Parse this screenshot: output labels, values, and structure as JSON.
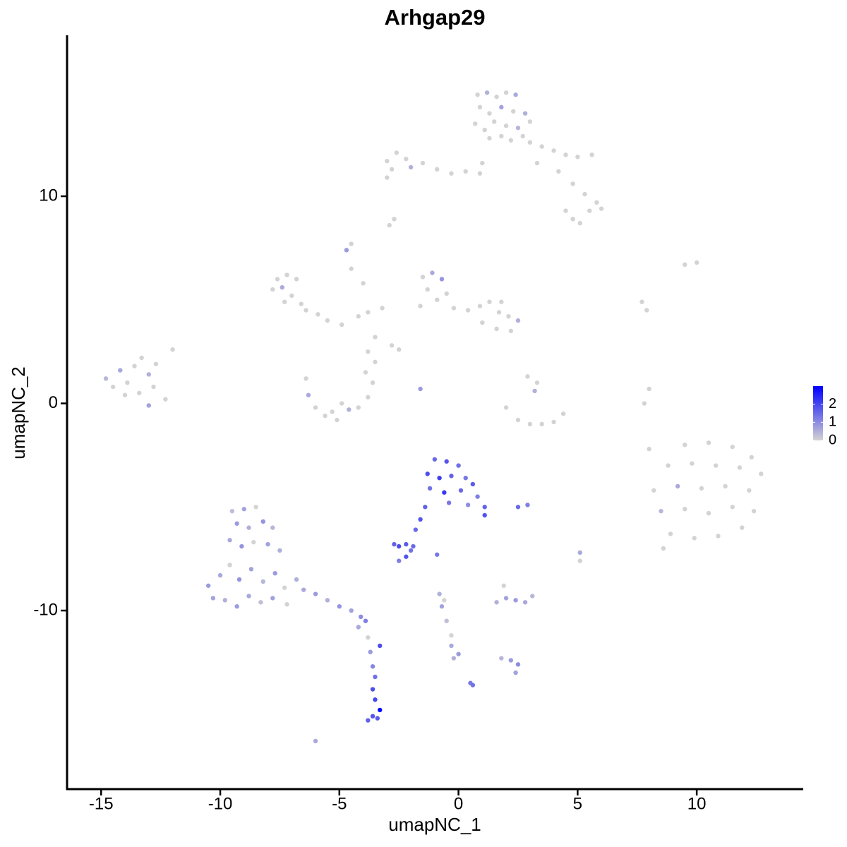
{
  "chart_data": {
    "type": "scatter",
    "title": "Arhgap29",
    "x_label": "umapNC_1",
    "y_label": "umapNC_2",
    "xlim": [
      -16.43,
      14.47
    ],
    "ylim": [
      -18.62,
      17.77
    ],
    "xticks": [
      -15,
      -10,
      -5,
      0,
      5,
      10
    ],
    "yticks": [
      -10,
      0,
      10
    ],
    "color_scale": {
      "low": "#d3d3d3",
      "high": "#0000ff",
      "lim": [
        0,
        3.0
      ],
      "ticks": [
        0,
        1,
        2
      ]
    },
    "x": [
      0.8,
      1.2,
      1.6,
      2.0,
      2.4,
      0.9,
      1.3,
      1.8,
      2.3,
      2.8,
      0.7,
      1.1,
      1.5,
      2.0,
      2.5,
      3.0,
      1.3,
      1.8,
      2.2,
      2.7,
      -3.0,
      -2.6,
      -2.2,
      -2.8,
      -2.0,
      -1.5,
      -0.9,
      -0.3,
      0.3,
      0.9,
      1.0,
      -3.0,
      3.0,
      3.5,
      4.0,
      4.5,
      5.0,
      5.6,
      3.3,
      4.2,
      4.8,
      5.3,
      5.8,
      6.0,
      5.5,
      4.5,
      4.8,
      5.1,
      -2.9,
      -2.7,
      -4.7,
      -4.5,
      -7.6,
      -7.2,
      -6.8,
      -7.8,
      -7.4,
      -7.0,
      -6.6,
      -7.3,
      -6.4,
      -5.9,
      -5.5,
      -4.9,
      -4.2,
      -3.8,
      -3.2,
      -4.0,
      -4.5,
      -3.5,
      -2.8,
      -2.5,
      -1.5,
      -1.1,
      -0.7,
      -1.3,
      -0.9,
      -0.5,
      -1.6,
      -0.2,
      0.4,
      0.9,
      1.3,
      1.7,
      2.1,
      2.5,
      1.0,
      1.6,
      2.2,
      1.8,
      -14.8,
      -14.5,
      -14.2,
      -13.9,
      -13.6,
      -13.3,
      -13.0,
      -12.7,
      -14.0,
      -13.4,
      -12.8,
      -12.3,
      -13.0,
      -12.0,
      -6.4,
      -6.3,
      -6.0,
      -5.6,
      -5.1,
      -4.6,
      -4.2,
      -3.8,
      -3.6,
      -3.9,
      -5.3,
      -4.9,
      -3.5,
      -3.8,
      2.0,
      2.5,
      3.0,
      3.5,
      4.0,
      4.4,
      3.2,
      3.3,
      2.9,
      -1.6,
      9.5,
      10.0,
      7.7,
      7.9,
      8.0,
      7.8,
      8.0,
      9.5,
      10.5,
      11.5,
      12.3,
      8.8,
      9.8,
      10.8,
      11.8,
      12.7,
      8.2,
      9.2,
      10.2,
      11.2,
      12.2,
      8.5,
      9.5,
      10.5,
      11.5,
      12.4,
      8.9,
      9.9,
      10.9,
      11.9,
      8.6,
      -1.0,
      -0.5,
      0.0,
      -1.3,
      -0.8,
      -0.3,
      0.3,
      0.6,
      -1.2,
      -0.6,
      0.1,
      0.8,
      1.1,
      1.1,
      -0.4,
      0.4,
      -1.4,
      -1.6,
      -1.8,
      -2.2,
      -2.5,
      -2.7,
      -2.0,
      -2.2,
      -2.5,
      -1.9,
      -0.9,
      2.5,
      2.9,
      5.1,
      5.1,
      -9.5,
      -9.0,
      -8.5,
      -9.3,
      -8.8,
      -8.2,
      -7.8,
      -9.6,
      -9.1,
      -8.6,
      -8.0,
      -7.5,
      -10.5,
      -10.0,
      -9.6,
      -9.2,
      -8.7,
      -8.2,
      -7.7,
      -7.3,
      -10.3,
      -9.8,
      -9.3,
      -8.8,
      -8.3,
      -7.8,
      -7.2,
      -6.8,
      -6.5,
      -6.0,
      -5.5,
      -5.0,
      -4.5,
      -4.1,
      -3.9,
      -4.2,
      -3.8,
      -3.7,
      -3.6,
      -3.5,
      -3.6,
      -3.5,
      -3.3,
      -3.6,
      -3.8,
      -3.4,
      -3.3,
      -6.0,
      -0.8,
      -0.7,
      -0.5,
      -0.3,
      -0.3,
      0.0,
      -0.2,
      0.5,
      0.6,
      -0.6,
      1.6,
      2.0,
      2.4,
      2.8,
      3.1,
      1.9,
      2.2,
      2.5,
      2.4,
      1.8
    ],
    "y": [
      14.9,
      15.0,
      14.8,
      15.0,
      14.9,
      14.3,
      14.0,
      14.3,
      14.1,
      14.0,
      13.5,
      13.2,
      13.6,
      13.4,
      13.3,
      13.6,
      12.8,
      12.9,
      12.7,
      12.9,
      11.7,
      12.1,
      11.8,
      11.3,
      11.4,
      11.6,
      11.3,
      11.1,
      11.2,
      11.1,
      11.6,
      10.9,
      12.6,
      12.4,
      12.2,
      12.0,
      11.9,
      12.0,
      11.6,
      11.2,
      10.6,
      10.1,
      9.7,
      9.4,
      9.3,
      9.3,
      8.9,
      8.7,
      8.6,
      8.9,
      7.4,
      7.7,
      6.0,
      6.2,
      6.0,
      5.5,
      5.6,
      5.2,
      4.8,
      4.9,
      4.5,
      4.3,
      4.0,
      3.8,
      4.2,
      4.4,
      4.6,
      5.8,
      6.5,
      3.2,
      2.8,
      2.6,
      6.1,
      6.3,
      6.0,
      5.5,
      5.0,
      5.3,
      4.7,
      4.6,
      4.5,
      4.7,
      4.9,
      4.4,
      4.2,
      4.0,
      3.9,
      3.6,
      3.5,
      4.9,
      1.2,
      0.8,
      1.6,
      1.0,
      1.8,
      2.2,
      1.4,
      1.9,
      0.4,
      0.5,
      0.8,
      0.2,
      -0.1,
      2.6,
      1.2,
      0.4,
      -0.2,
      -0.6,
      -0.8,
      -0.3,
      -0.2,
      0.3,
      1.0,
      1.5,
      -0.4,
      0.0,
      2.0,
      2.5,
      -0.2,
      -0.8,
      -1.0,
      -1.0,
      -0.9,
      -0.5,
      0.6,
      1.0,
      1.3,
      0.7,
      6.7,
      6.8,
      4.9,
      4.5,
      0.7,
      0.0,
      -2.2,
      -2.0,
      -1.9,
      -2.1,
      -2.6,
      -3.0,
      -2.9,
      -3.0,
      -3.1,
      -3.4,
      -4.2,
      -4.0,
      -4.1,
      -4.0,
      -4.2,
      -5.2,
      -5.1,
      -5.3,
      -5.0,
      -5.2,
      -6.3,
      -6.5,
      -6.4,
      -6.0,
      -7.0,
      -2.7,
      -2.8,
      -3.0,
      -3.4,
      -3.6,
      -3.5,
      -3.6,
      -3.9,
      -4.1,
      -4.3,
      -4.2,
      -4.5,
      -5.0,
      -5.4,
      -4.8,
      -4.9,
      -5.0,
      -5.6,
      -6.1,
      -6.8,
      -6.9,
      -6.8,
      -7.1,
      -7.4,
      -7.6,
      -6.9,
      -7.3,
      -5.0,
      -4.9,
      -7.2,
      -7.6,
      -5.2,
      -5.1,
      -5.0,
      -5.8,
      -6.0,
      -5.7,
      -6.0,
      -6.6,
      -6.9,
      -6.7,
      -6.8,
      -7.1,
      -8.8,
      -8.3,
      -7.8,
      -8.5,
      -8.0,
      -8.6,
      -8.2,
      -8.9,
      -9.4,
      -9.5,
      -9.8,
      -9.3,
      -9.6,
      -9.4,
      -9.7,
      -8.5,
      -9.0,
      -9.2,
      -9.5,
      -9.8,
      -10.0,
      -10.3,
      -10.5,
      -10.8,
      -11.3,
      -12.0,
      -12.7,
      -13.2,
      -13.8,
      -14.3,
      -14.8,
      -15.1,
      -15.3,
      -15.2,
      -11.7,
      -16.3,
      -9.2,
      -9.8,
      -10.5,
      -11.2,
      -11.7,
      -12.1,
      -12.3,
      -13.5,
      -13.6,
      -9.5,
      -9.6,
      -9.4,
      -9.5,
      -9.6,
      -9.3,
      -8.8,
      -12.4,
      -12.6,
      -13.0,
      -12.3
    ],
    "expression": [
      0,
      0.5,
      0,
      0,
      0.6,
      0,
      0,
      0.7,
      0,
      0.5,
      0,
      0,
      0,
      0,
      0.4,
      0,
      0,
      0,
      0,
      0,
      0,
      0,
      0,
      0,
      0.5,
      0,
      0,
      0,
      0,
      0,
      0,
      0,
      0,
      0,
      0,
      0,
      0,
      0,
      0,
      0,
      0,
      0,
      0,
      0,
      0,
      0,
      0,
      0,
      0,
      0,
      0.8,
      0,
      0,
      0,
      0,
      0,
      0.6,
      0,
      0,
      0,
      0,
      0,
      0,
      0,
      0,
      0,
      0,
      0,
      0,
      0,
      0,
      0,
      0,
      0.6,
      0.9,
      0,
      0,
      0,
      0,
      0,
      0,
      0,
      0,
      0,
      0,
      0.5,
      0,
      0,
      0,
      0,
      0.4,
      0,
      0.6,
      0,
      0,
      0,
      0.5,
      0,
      0,
      0,
      0,
      0,
      0.7,
      0,
      0,
      0.6,
      0,
      0,
      0,
      0.5,
      0,
      0,
      0,
      0,
      0,
      0,
      0,
      0,
      0,
      0,
      0,
      0,
      0,
      0,
      0.5,
      0,
      0,
      0.8,
      0,
      0,
      0,
      0,
      0,
      0,
      0,
      0,
      0,
      0,
      0,
      0,
      0,
      0,
      0,
      0,
      0,
      0.6,
      0,
      0,
      0,
      0.4,
      0,
      0,
      0,
      0,
      0,
      0,
      0,
      0,
      0,
      1.5,
      1.8,
      1.4,
      1.9,
      2.1,
      1.6,
      1.3,
      1.7,
      1.4,
      2.2,
      1.5,
      1.2,
      1.6,
      1.8,
      1.3,
      1.0,
      1.6,
      1.8,
      1.5,
      1.7,
      1.9,
      1.6,
      1.4,
      1.8,
      1.2,
      1.5,
      1.3,
      1.5,
      1.2,
      0.6,
      0,
      0.3,
      0.7,
      0,
      0.8,
      0.5,
      0.9,
      0.4,
      0.6,
      0.9,
      0,
      0.7,
      0.5,
      0.8,
      0.6,
      0,
      0.9,
      0.7,
      0.4,
      0.8,
      0,
      0.7,
      0.5,
      0.8,
      0.6,
      0.3,
      0.7,
      0,
      0.5,
      0.6,
      0.8,
      0.5,
      0.9,
      0.7,
      1.0,
      1.2,
      0.6,
      0,
      0.8,
      1.1,
      1.4,
      1.9,
      2.0,
      2.9,
      1.8,
      1.6,
      1.7,
      1.9,
      0.6,
      0.5,
      0.7,
      0.3,
      0,
      0.6,
      0.8,
      0.5,
      1.3,
      1.4,
      0,
      0.5,
      0.7,
      0.8,
      0.6,
      0.4,
      0,
      0.8,
      1.0,
      0.7,
      0.4
    ]
  }
}
